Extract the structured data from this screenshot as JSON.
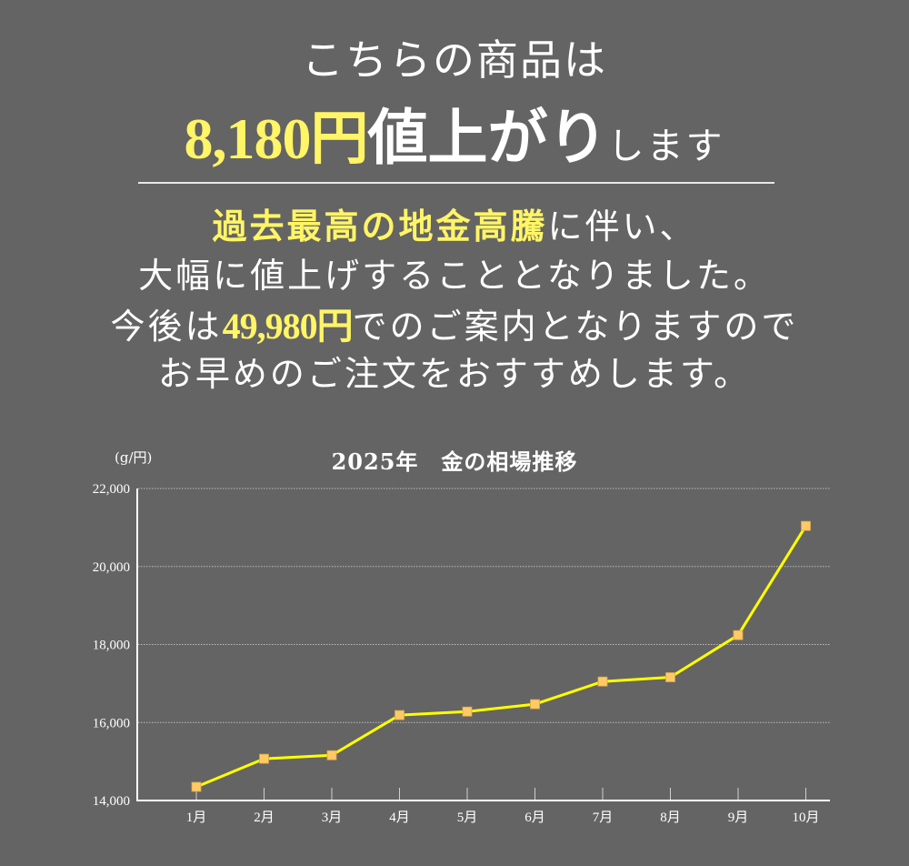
{
  "header": {
    "line1": "こちらの商品は",
    "price_increase": "8,180円",
    "rise_text": "値上がり",
    "rise_tail": "します"
  },
  "message": {
    "line1_highlight": "過去最高の地金高騰",
    "line1_rest": "に伴い、",
    "line2": "大幅に値上げすることとなりました。",
    "line3_prefix": "今後は",
    "line3_price": "49,980円",
    "line3_rest": "でのご案内となりますので",
    "line4": "お早めのご注文をおすすめします。"
  },
  "colors": {
    "background": "#646464",
    "highlight": "#fff566",
    "line": "#ffff00",
    "marker": "#ffc966",
    "text": "#ffffff"
  },
  "chart_data": {
    "type": "line",
    "title": "2025年　金の相場推移",
    "ylabel": "(g/円)",
    "xlabel": "",
    "categories": [
      "1月",
      "2月",
      "3月",
      "4月",
      "5月",
      "6月",
      "7月",
      "8月",
      "9月",
      "10月"
    ],
    "series": [
      {
        "name": "金の相場",
        "values": [
          14350,
          15070,
          15160,
          16190,
          16280,
          16470,
          17050,
          17160,
          18240,
          21040
        ]
      }
    ],
    "ylim": [
      14000,
      22000
    ],
    "yticks": [
      14000,
      16000,
      18000,
      20000,
      22000
    ],
    "ytick_labels": [
      "14,000",
      "16,000",
      "18,000",
      "20,000",
      "22,000"
    ],
    "grid": "horizontal dotted",
    "legend": "none"
  }
}
